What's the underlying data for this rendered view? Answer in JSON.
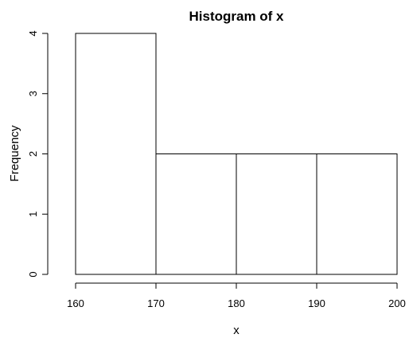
{
  "chart_data": {
    "type": "bar",
    "title": "Histogram of x",
    "xlabel": "x",
    "ylabel": "Frequency",
    "bins": [
      {
        "start": 160,
        "end": 170,
        "count": 4
      },
      {
        "start": 170,
        "end": 180,
        "count": 2
      },
      {
        "start": 180,
        "end": 190,
        "count": 2
      },
      {
        "start": 190,
        "end": 200,
        "count": 2
      }
    ],
    "xlim": [
      160,
      200
    ],
    "ylim": [
      0,
      4
    ],
    "x_ticks": [
      160,
      170,
      180,
      190,
      200
    ],
    "y_ticks": [
      0,
      1,
      2,
      3,
      4
    ],
    "grid": false,
    "colors": {
      "bar_fill": "#ffffff",
      "bar_stroke": "#000000"
    }
  }
}
